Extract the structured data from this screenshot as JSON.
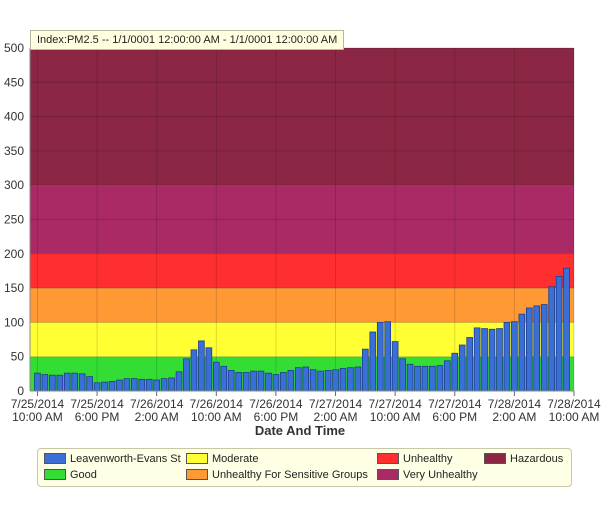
{
  "chart_data": {
    "type": "bar",
    "title": "Index:PM2.5 -- 1/1/0001 12:00:00 AM  -  1/1/0001 12:00:00 AM",
    "xlabel": "Date And Time",
    "ylabel": "",
    "ylim": [
      0,
      500
    ],
    "yticks": [
      0,
      50,
      100,
      150,
      200,
      250,
      300,
      350,
      400,
      450,
      500
    ],
    "xticks": [
      {
        "date": "7/25/2014",
        "time": "10:00 AM"
      },
      {
        "date": "7/25/2014",
        "time": "6:00 PM"
      },
      {
        "date": "7/26/2014",
        "time": "2:00 AM"
      },
      {
        "date": "7/26/2014",
        "time": "10:00 AM"
      },
      {
        "date": "7/26/2014",
        "time": "6:00 PM"
      },
      {
        "date": "7/27/2014",
        "time": "2:00 AM"
      },
      {
        "date": "7/27/2014",
        "time": "10:00 AM"
      },
      {
        "date": "7/27/2014",
        "time": "6:00 PM"
      },
      {
        "date": "7/28/2014",
        "time": "2:00 AM"
      },
      {
        "date": "7/28/2014",
        "time": "10:00 AM"
      }
    ],
    "bands": [
      {
        "name": "Good",
        "from": 0,
        "to": 50,
        "color": "#33dd33"
      },
      {
        "name": "Moderate",
        "from": 50,
        "to": 100,
        "color": "#ffff33"
      },
      {
        "name": "Unhealthy For Sensitive Groups",
        "from": 100,
        "to": 150,
        "color": "#ff9933"
      },
      {
        "name": "Unhealthy",
        "from": 150,
        "to": 200,
        "color": "#ff2f2f"
      },
      {
        "name": "Very Unhealthy",
        "from": 200,
        "to": 300,
        "color": "#aa2a66"
      },
      {
        "name": "Hazardous",
        "from": 300,
        "to": 500,
        "color": "#8b2744"
      }
    ],
    "grid": true,
    "legend_position": "bottom",
    "series": [
      {
        "name": "Leavenworth-Evans St",
        "color": "#3a6fd8",
        "values": [
          26,
          24,
          23,
          23,
          26,
          26,
          25,
          21,
          12,
          13,
          14,
          16,
          18,
          18,
          17,
          17,
          16,
          18,
          19,
          28,
          47,
          60,
          73,
          63,
          42,
          36,
          30,
          27,
          27,
          29,
          29,
          26,
          24,
          27,
          30,
          34,
          35,
          31,
          29,
          30,
          31,
          33,
          34,
          35,
          61,
          86,
          100,
          101,
          72,
          47,
          39,
          36,
          36,
          36,
          37,
          44,
          55,
          67,
          78,
          92,
          91,
          90,
          91,
          100,
          101,
          112,
          121,
          124,
          126,
          152,
          167,
          179
        ]
      }
    ]
  },
  "legend": {
    "items": [
      {
        "label": "Leavenworth-Evans St",
        "color": "#3a6fd8"
      },
      {
        "label": "Moderate",
        "color": "#ffff33"
      },
      {
        "label": "Unhealthy",
        "color": "#ff2f2f"
      },
      {
        "label": "Hazardous",
        "color": "#8b2744"
      },
      {
        "label": "Good",
        "color": "#33dd33"
      },
      {
        "label": "Unhealthy For Sensitive Groups",
        "color": "#ff9933"
      },
      {
        "label": "Very Unhealthy",
        "color": "#aa2a66"
      }
    ]
  }
}
